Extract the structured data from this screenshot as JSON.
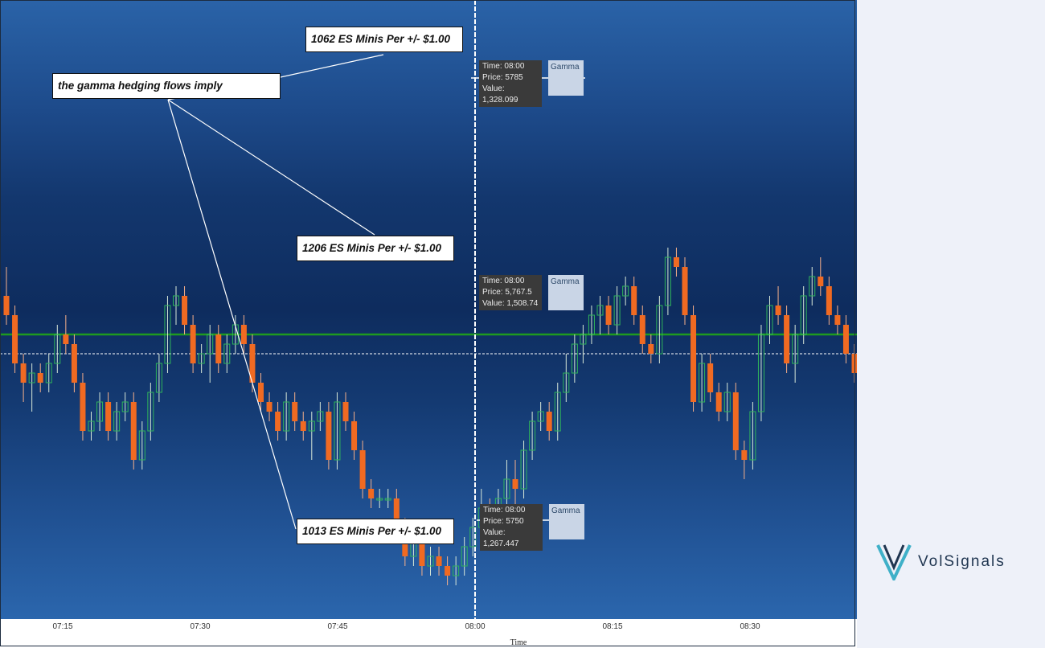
{
  "chart_data": {
    "type": "candlestick",
    "xlabel": "Time",
    "x_ticks": [
      "07:15",
      "07:30",
      "07:45",
      "08:00",
      "08:15",
      "08:30"
    ],
    "gamma_level": 5762,
    "crosshair": {
      "time": "08:00",
      "price": 5760
    },
    "y_range": [
      5735,
      5795
    ],
    "colors": {
      "up": "#2fb45a",
      "down": "#f06a22",
      "gamma_line": "#1f9a1f",
      "crosshair": "#ffffff"
    },
    "candles": [
      {
        "o": 5766,
        "h": 5769,
        "l": 5763,
        "c": 5764
      },
      {
        "o": 5764,
        "h": 5765,
        "l": 5758,
        "c": 5759
      },
      {
        "o": 5759,
        "h": 5760,
        "l": 5755,
        "c": 5757
      },
      {
        "o": 5757,
        "h": 5759,
        "l": 5754,
        "c": 5758
      },
      {
        "o": 5758,
        "h": 5759,
        "l": 5756,
        "c": 5757
      },
      {
        "o": 5757,
        "h": 5760,
        "l": 5756,
        "c": 5759
      },
      {
        "o": 5759,
        "h": 5763,
        "l": 5758,
        "c": 5762
      },
      {
        "o": 5762,
        "h": 5764,
        "l": 5760,
        "c": 5761
      },
      {
        "o": 5761,
        "h": 5762,
        "l": 5756,
        "c": 5757
      },
      {
        "o": 5757,
        "h": 5758,
        "l": 5751,
        "c": 5752
      },
      {
        "o": 5752,
        "h": 5754,
        "l": 5751,
        "c": 5753
      },
      {
        "o": 5753,
        "h": 5756,
        "l": 5752,
        "c": 5755
      },
      {
        "o": 5755,
        "h": 5756,
        "l": 5751,
        "c": 5752
      },
      {
        "o": 5752,
        "h": 5755,
        "l": 5751,
        "c": 5754
      },
      {
        "o": 5754,
        "h": 5756,
        "l": 5753,
        "c": 5755
      },
      {
        "o": 5755,
        "h": 5756,
        "l": 5748,
        "c": 5749
      },
      {
        "o": 5749,
        "h": 5753,
        "l": 5748,
        "c": 5752
      },
      {
        "o": 5752,
        "h": 5757,
        "l": 5751,
        "c": 5756
      },
      {
        "o": 5756,
        "h": 5760,
        "l": 5755,
        "c": 5759
      },
      {
        "o": 5759,
        "h": 5766,
        "l": 5758,
        "c": 5765
      },
      {
        "o": 5765,
        "h": 5767,
        "l": 5763,
        "c": 5766
      },
      {
        "o": 5766,
        "h": 5767,
        "l": 5762,
        "c": 5763
      },
      {
        "o": 5763,
        "h": 5764,
        "l": 5758,
        "c": 5759
      },
      {
        "o": 5759,
        "h": 5761,
        "l": 5758,
        "c": 5760
      },
      {
        "o": 5760,
        "h": 5763,
        "l": 5757,
        "c": 5762
      },
      {
        "o": 5762,
        "h": 5763,
        "l": 5758,
        "c": 5759
      },
      {
        "o": 5759,
        "h": 5762,
        "l": 5758,
        "c": 5761
      },
      {
        "o": 5761,
        "h": 5764,
        "l": 5760,
        "c": 5763
      },
      {
        "o": 5763,
        "h": 5764,
        "l": 5760,
        "c": 5761
      },
      {
        "o": 5761,
        "h": 5762,
        "l": 5756,
        "c": 5757
      },
      {
        "o": 5757,
        "h": 5758,
        "l": 5754,
        "c": 5755
      },
      {
        "o": 5755,
        "h": 5756,
        "l": 5753,
        "c": 5754
      },
      {
        "o": 5754,
        "h": 5755,
        "l": 5751,
        "c": 5752
      },
      {
        "o": 5752,
        "h": 5756,
        "l": 5751,
        "c": 5755
      },
      {
        "o": 5755,
        "h": 5756,
        "l": 5752,
        "c": 5753
      },
      {
        "o": 5753,
        "h": 5754,
        "l": 5751,
        "c": 5752
      },
      {
        "o": 5752,
        "h": 5754,
        "l": 5749,
        "c": 5753
      },
      {
        "o": 5753,
        "h": 5755,
        "l": 5752,
        "c": 5754
      },
      {
        "o": 5754,
        "h": 5755,
        "l": 5748,
        "c": 5749
      },
      {
        "o": 5749,
        "h": 5756,
        "l": 5748,
        "c": 5755
      },
      {
        "o": 5755,
        "h": 5756,
        "l": 5752,
        "c": 5753
      },
      {
        "o": 5753,
        "h": 5754,
        "l": 5749,
        "c": 5750
      },
      {
        "o": 5750,
        "h": 5751,
        "l": 5745,
        "c": 5746
      },
      {
        "o": 5746,
        "h": 5747,
        "l": 5744,
        "c": 5745
      },
      {
        "o": 5745,
        "h": 5746,
        "l": 5744,
        "c": 5745
      },
      {
        "o": 5745,
        "h": 5746,
        "l": 5744,
        "c": 5745
      },
      {
        "o": 5745,
        "h": 5746,
        "l": 5741,
        "c": 5742
      },
      {
        "o": 5742,
        "h": 5743,
        "l": 5738,
        "c": 5739
      },
      {
        "o": 5739,
        "h": 5742,
        "l": 5738,
        "c": 5741
      },
      {
        "o": 5741,
        "h": 5742,
        "l": 5737,
        "c": 5738
      },
      {
        "o": 5738,
        "h": 5740,
        "l": 5737,
        "c": 5739
      },
      {
        "o": 5739,
        "h": 5740,
        "l": 5737,
        "c": 5738
      },
      {
        "o": 5738,
        "h": 5739,
        "l": 5736,
        "c": 5737
      },
      {
        "o": 5737,
        "h": 5739,
        "l": 5736,
        "c": 5738
      },
      {
        "o": 5738,
        "h": 5741,
        "l": 5737,
        "c": 5740
      },
      {
        "o": 5740,
        "h": 5743,
        "l": 5739,
        "c": 5742
      },
      {
        "o": 5742,
        "h": 5746,
        "l": 5741,
        "c": 5744
      },
      {
        "o": 5744,
        "h": 5745,
        "l": 5740,
        "c": 5741
      },
      {
        "o": 5741,
        "h": 5746,
        "l": 5740,
        "c": 5745
      },
      {
        "o": 5745,
        "h": 5749,
        "l": 5744,
        "c": 5747
      },
      {
        "o": 5747,
        "h": 5749,
        "l": 5744,
        "c": 5746
      },
      {
        "o": 5746,
        "h": 5751,
        "l": 5745,
        "c": 5750
      },
      {
        "o": 5750,
        "h": 5754,
        "l": 5749,
        "c": 5753
      },
      {
        "o": 5753,
        "h": 5755,
        "l": 5752,
        "c": 5754
      },
      {
        "o": 5754,
        "h": 5755,
        "l": 5751,
        "c": 5752
      },
      {
        "o": 5752,
        "h": 5757,
        "l": 5751,
        "c": 5756
      },
      {
        "o": 5756,
        "h": 5760,
        "l": 5755,
        "c": 5758
      },
      {
        "o": 5758,
        "h": 5762,
        "l": 5757,
        "c": 5761
      },
      {
        "o": 5761,
        "h": 5763,
        "l": 5759,
        "c": 5762
      },
      {
        "o": 5762,
        "h": 5765,
        "l": 5761,
        "c": 5764
      },
      {
        "o": 5764,
        "h": 5766,
        "l": 5762,
        "c": 5765
      },
      {
        "o": 5765,
        "h": 5766,
        "l": 5762,
        "c": 5763
      },
      {
        "o": 5763,
        "h": 5767,
        "l": 5762,
        "c": 5766
      },
      {
        "o": 5766,
        "h": 5768,
        "l": 5765,
        "c": 5767
      },
      {
        "o": 5767,
        "h": 5768,
        "l": 5763,
        "c": 5764
      },
      {
        "o": 5764,
        "h": 5765,
        "l": 5760,
        "c": 5761
      },
      {
        "o": 5761,
        "h": 5762,
        "l": 5759,
        "c": 5760
      },
      {
        "o": 5760,
        "h": 5766,
        "l": 5759,
        "c": 5765
      },
      {
        "o": 5765,
        "h": 5771,
        "l": 5764,
        "c": 5770
      },
      {
        "o": 5770,
        "h": 5771,
        "l": 5768,
        "c": 5769
      },
      {
        "o": 5769,
        "h": 5770,
        "l": 5763,
        "c": 5764
      },
      {
        "o": 5764,
        "h": 5765,
        "l": 5754,
        "c": 5755
      },
      {
        "o": 5755,
        "h": 5760,
        "l": 5754,
        "c": 5759
      },
      {
        "o": 5759,
        "h": 5760,
        "l": 5755,
        "c": 5756
      },
      {
        "o": 5756,
        "h": 5757,
        "l": 5753,
        "c": 5754
      },
      {
        "o": 5754,
        "h": 5757,
        "l": 5753,
        "c": 5756
      },
      {
        "o": 5756,
        "h": 5757,
        "l": 5749,
        "c": 5750
      },
      {
        "o": 5750,
        "h": 5751,
        "l": 5747,
        "c": 5749
      },
      {
        "o": 5749,
        "h": 5755,
        "l": 5748,
        "c": 5754
      },
      {
        "o": 5754,
        "h": 5763,
        "l": 5753,
        "c": 5762
      },
      {
        "o": 5762,
        "h": 5766,
        "l": 5761,
        "c": 5765
      },
      {
        "o": 5765,
        "h": 5767,
        "l": 5763,
        "c": 5764
      },
      {
        "o": 5764,
        "h": 5765,
        "l": 5758,
        "c": 5759
      },
      {
        "o": 5759,
        "h": 5763,
        "l": 5757,
        "c": 5762
      },
      {
        "o": 5762,
        "h": 5767,
        "l": 5761,
        "c": 5766
      },
      {
        "o": 5766,
        "h": 5769,
        "l": 5765,
        "c": 5768
      },
      {
        "o": 5768,
        "h": 5770,
        "l": 5766,
        "c": 5767
      },
      {
        "o": 5767,
        "h": 5768,
        "l": 5763,
        "c": 5764
      },
      {
        "o": 5764,
        "h": 5765,
        "l": 5762,
        "c": 5763
      },
      {
        "o": 5763,
        "h": 5764,
        "l": 5759,
        "c": 5760
      },
      {
        "o": 5760,
        "h": 5761,
        "l": 5757,
        "c": 5758
      }
    ],
    "callouts": [
      {
        "text": "1062 ES Minis Per +/- $1.00"
      },
      {
        "text": "the gamma hedging flows imply"
      },
      {
        "text": "1206 ES Minis Per +/- $1.00"
      },
      {
        "text": "1013 ES Minis Per +/- $1.00"
      }
    ],
    "tooltips": [
      {
        "time_label": "Time: 08:00",
        "price_label": "Price: 5785",
        "value_label": "Value: 1,328.099",
        "series": "Gamma"
      },
      {
        "time_label": "Time: 08:00",
        "price_label": "Price: 5,767.5",
        "value_label": "Value: 1,508.74",
        "series": "Gamma"
      },
      {
        "time_label": "Time: 08:00",
        "price_label": "Price: 5750",
        "value_label": "Value: 1,267.447",
        "series": "Gamma"
      }
    ]
  },
  "brand": {
    "name": "VolSignals"
  }
}
